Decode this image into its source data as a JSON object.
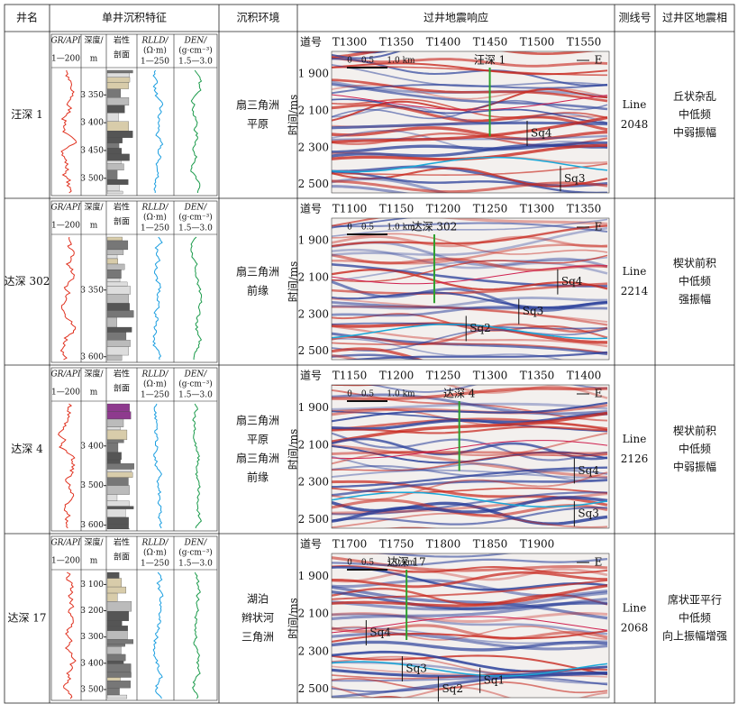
{
  "header": [
    "井名",
    "单井沉积特征",
    "沉积环境",
    "过井地震响应",
    "测线号",
    "过井区地震相"
  ],
  "log_header": {
    "gr": "GR/API",
    "gr_range": "1—200",
    "depth": "深度/",
    "depth_unit": "m",
    "litho": "岩性",
    "litho2": "剖面",
    "rlld": "RLLD/",
    "rlld_unit": "(Ω·m)",
    "rlld_range": "1—250",
    "den": "DEN/",
    "den_unit": "(g·cm⁻³)",
    "den_range": "1.5—3.0"
  },
  "seismic_common": {
    "trace_label": "道号",
    "time_label": "时间/ms",
    "scale": [
      "0",
      "0.5",
      "1.0 km"
    ],
    "direction": "E"
  },
  "rows": [
    {
      "well": "汪深 1",
      "depth_ticks": [
        "3 350",
        "3 400",
        "3 450",
        "3 500"
      ],
      "environment": [
        "扇三角洲",
        "平原"
      ],
      "seismic": {
        "traces": [
          "T1300",
          "T1350",
          "T1400",
          "T1450",
          "T1500",
          "T1550"
        ],
        "times": [
          "1 900",
          "2 100",
          "2 300",
          "2 500"
        ],
        "sequences": [
          "Sq4",
          "Sq3"
        ]
      },
      "line": [
        "Line",
        "2048"
      ],
      "facies": [
        "丘状杂乱",
        "中低频",
        "中弱振幅"
      ]
    },
    {
      "well": "达深 302",
      "depth_ticks": [
        "3 350",
        "3 600"
      ],
      "environment": [
        "扇三角洲",
        "前缘"
      ],
      "seismic": {
        "traces": [
          "T1100",
          "T1150",
          "T1200",
          "T1250",
          "T1300",
          "T1350"
        ],
        "times": [
          "1 900",
          "2 100",
          "2 300",
          "2 500"
        ],
        "sequences": [
          "Sq4",
          "Sq3",
          "Sq2"
        ]
      },
      "line": [
        "Line",
        "2214"
      ],
      "facies": [
        "楔状前积",
        "中低频",
        "强振幅"
      ]
    },
    {
      "well": "达深 4",
      "depth_ticks": [
        "3 400",
        "3 500",
        "3 600"
      ],
      "environment": [
        "扇三角洲",
        "平原",
        "扇三角洲",
        "前缘"
      ],
      "seismic": {
        "traces": [
          "T1150",
          "T1200",
          "T1250",
          "T1300",
          "T1350",
          "T1400"
        ],
        "times": [
          "1 900",
          "2 100",
          "2 300",
          "2 500"
        ],
        "sequences": [
          "Sq4",
          "Sq3"
        ]
      },
      "line": [
        "Line",
        "2126"
      ],
      "facies": [
        "楔状前积",
        "中低频",
        "中弱振幅"
      ]
    },
    {
      "well": "达深 17",
      "depth_ticks": [
        "3 100",
        "3 200",
        "3 300",
        "3 400",
        "3 500"
      ],
      "environment": [
        "湖泊",
        "辫状河",
        "三角洲"
      ],
      "seismic": {
        "traces": [
          "T1700",
          "T1750",
          "T1800",
          "T1850",
          "T1900"
        ],
        "times": [
          "1 900",
          "2 100",
          "2 300",
          "2 500"
        ],
        "sequences": [
          "Sq4",
          "Sq3",
          "Sq2",
          "Sq1"
        ]
      },
      "line": [
        "Line",
        "2068"
      ],
      "facies": [
        "席状亚平行",
        "中低频",
        "向上振幅增强"
      ]
    }
  ]
}
